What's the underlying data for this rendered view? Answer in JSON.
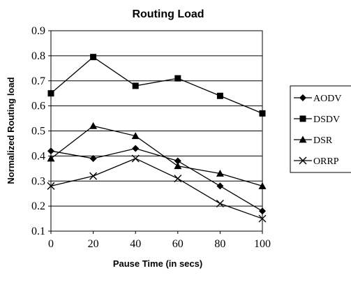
{
  "chart_data": {
    "type": "line",
    "title": "Routing Load",
    "xlabel": "Pause Time (in secs)",
    "ylabel": "Normalized Routing load",
    "x": [
      0,
      20,
      40,
      60,
      80,
      100
    ],
    "xlim": [
      0,
      100
    ],
    "ylim": [
      0.1,
      0.9
    ],
    "yticks": [
      "0.1",
      "0.2",
      "0.3",
      "0.4",
      "0.5",
      "0.6",
      "0.7",
      "0.8",
      "0.9"
    ],
    "xticks": [
      "0",
      "20",
      "40",
      "60",
      "80",
      "100"
    ],
    "grid": "horizontal",
    "legend_position": "right",
    "series": [
      {
        "name": "AODV",
        "marker": "diamond",
        "values": [
          0.42,
          0.39,
          0.43,
          0.38,
          0.28,
          0.18
        ]
      },
      {
        "name": "DSDV",
        "marker": "square",
        "values": [
          0.65,
          0.795,
          0.68,
          0.71,
          0.64,
          0.57
        ]
      },
      {
        "name": "DSR",
        "marker": "triangle",
        "values": [
          0.39,
          0.52,
          0.48,
          0.36,
          0.33,
          0.28
        ]
      },
      {
        "name": "ORRP",
        "marker": "x",
        "values": [
          0.28,
          0.32,
          0.39,
          0.31,
          0.21,
          0.15
        ]
      }
    ]
  }
}
